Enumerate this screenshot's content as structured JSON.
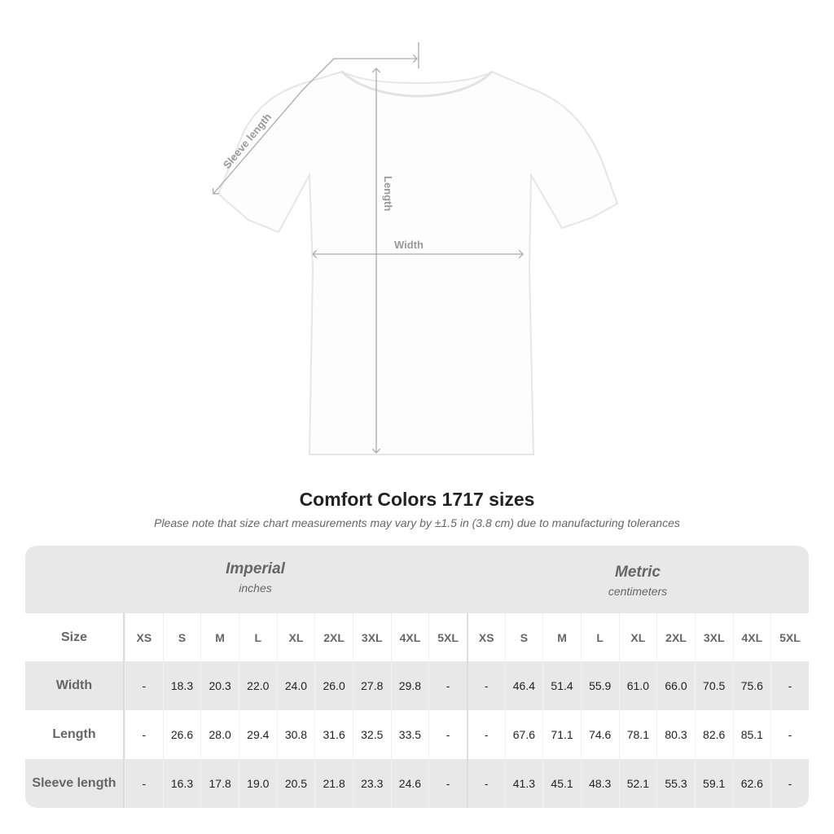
{
  "diagram": {
    "sleeve_label": "Sleeve length",
    "length_label": "Length",
    "width_label": "Width"
  },
  "title": "Comfort Colors 1717 sizes",
  "subtitle": "Please note that size chart measurements may vary by ±1.5 in (3.8 cm) due to manufacturing tolerances",
  "table": {
    "imperial": {
      "name": "Imperial",
      "unit": "inches"
    },
    "metric": {
      "name": "Metric",
      "unit": "centimeters"
    },
    "size_label": "Size",
    "sizes": [
      "XS",
      "S",
      "M",
      "L",
      "XL",
      "2XL",
      "3XL",
      "4XL",
      "5XL"
    ],
    "rows": [
      {
        "label": "Width",
        "imperial": [
          "-",
          "18.3",
          "20.3",
          "22.0",
          "24.0",
          "26.0",
          "27.8",
          "29.8",
          "-"
        ],
        "metric": [
          "-",
          "46.4",
          "51.4",
          "55.9",
          "61.0",
          "66.0",
          "70.5",
          "75.6",
          "-"
        ]
      },
      {
        "label": "Length",
        "imperial": [
          "-",
          "26.6",
          "28.0",
          "29.4",
          "30.8",
          "31.6",
          "32.5",
          "33.5",
          "-"
        ],
        "metric": [
          "-",
          "67.6",
          "71.1",
          "74.6",
          "78.1",
          "80.3",
          "82.6",
          "85.1",
          "-"
        ]
      },
      {
        "label": "Sleeve length",
        "imperial": [
          "-",
          "16.3",
          "17.8",
          "19.0",
          "20.5",
          "21.8",
          "23.3",
          "24.6",
          "-"
        ],
        "metric": [
          "-",
          "41.3",
          "45.1",
          "48.3",
          "52.1",
          "55.3",
          "59.1",
          "62.6",
          "-"
        ]
      }
    ]
  }
}
